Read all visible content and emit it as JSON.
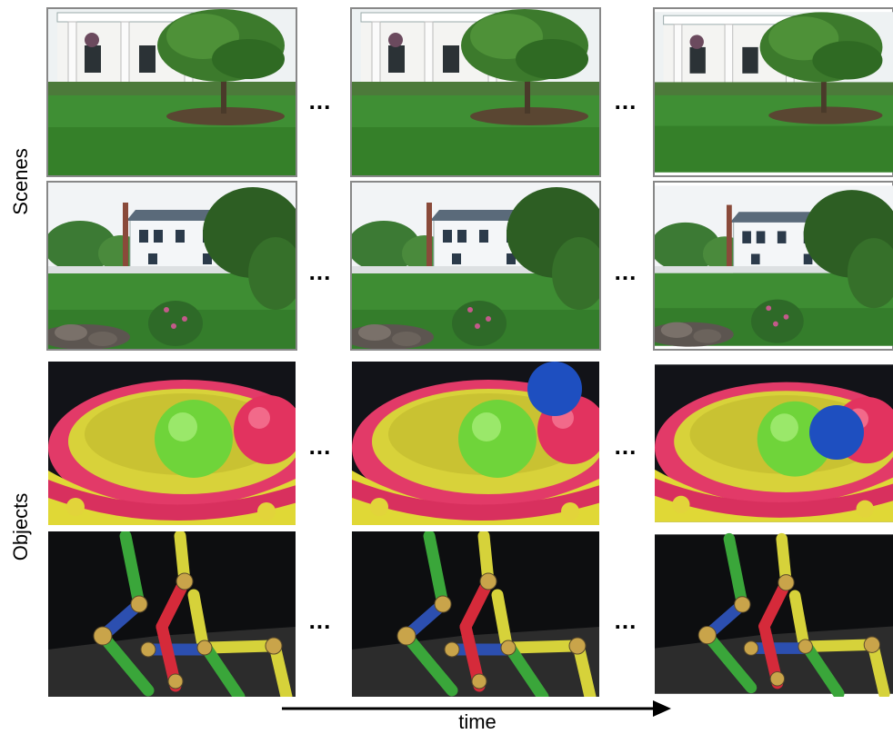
{
  "row_groups": [
    {
      "label": "Scenes"
    },
    {
      "label": "Objects"
    }
  ],
  "separator": "...",
  "axis": {
    "label": "time"
  }
}
